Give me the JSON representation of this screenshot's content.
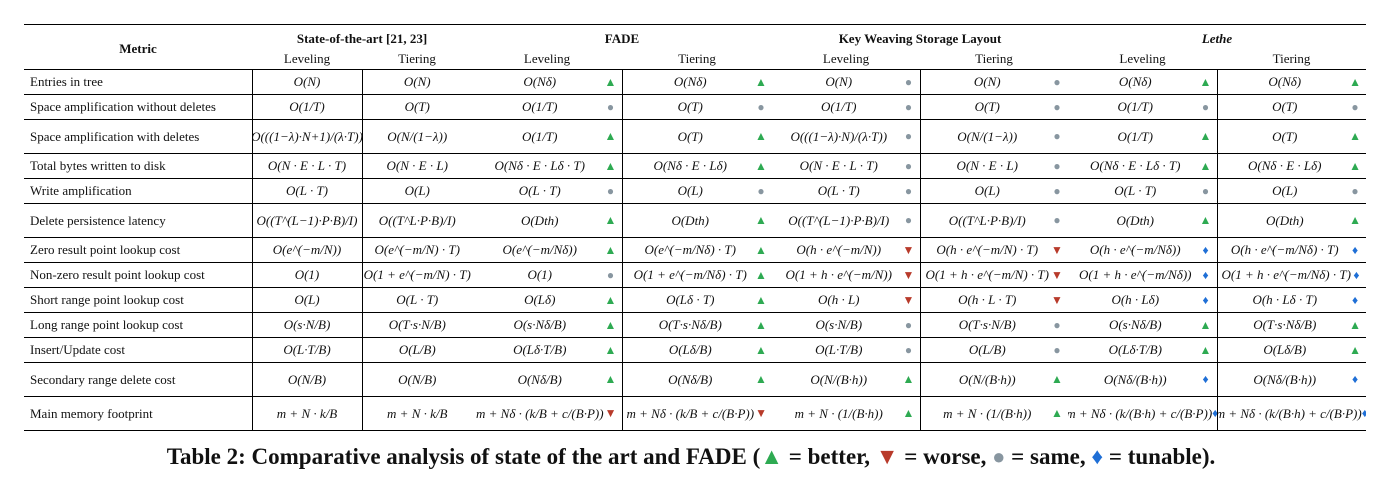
{
  "header": {
    "metric": "Metric",
    "groups": [
      "State-of-the-art [21, 23]",
      "FADE",
      "Key Weaving Storage Layout",
      "Lethe"
    ],
    "sub": [
      "Leveling",
      "Tiering",
      "Leveling",
      "Tiering",
      "Leveling",
      "Tiering",
      "Leveling",
      "Tiering"
    ]
  },
  "rows": [
    {
      "metric": "Entries in tree",
      "tall": false,
      "cells": [
        [
          "O(N)",
          ""
        ],
        [
          "O(N)",
          ""
        ],
        [
          "O(Nδ)",
          "up"
        ],
        [
          "O(Nδ)",
          "up"
        ],
        [
          "O(N)",
          "same"
        ],
        [
          "O(N)",
          "same"
        ],
        [
          "O(Nδ)",
          "up"
        ],
        [
          "O(Nδ)",
          "up"
        ]
      ]
    },
    {
      "metric": "Space amplification without deletes",
      "tall": false,
      "cells": [
        [
          "O(1/T)",
          ""
        ],
        [
          "O(T)",
          ""
        ],
        [
          "O(1/T)",
          "same"
        ],
        [
          "O(T)",
          "same"
        ],
        [
          "O(1/T)",
          "same"
        ],
        [
          "O(T)",
          "same"
        ],
        [
          "O(1/T)",
          "same"
        ],
        [
          "O(T)",
          "same"
        ]
      ]
    },
    {
      "metric": "Space amplification with deletes",
      "tall": true,
      "cells": [
        [
          "O(((1−λ)·N+1)/(λ·T))",
          ""
        ],
        [
          "O(N/(1−λ))",
          ""
        ],
        [
          "O(1/T)",
          "up"
        ],
        [
          "O(T)",
          "up"
        ],
        [
          "O(((1−λ)·N)/(λ·T))",
          "same"
        ],
        [
          "O(N/(1−λ))",
          "same"
        ],
        [
          "O(1/T)",
          "up"
        ],
        [
          "O(T)",
          "up"
        ]
      ]
    },
    {
      "metric": "Total bytes written to disk",
      "tall": false,
      "cells": [
        [
          "O(N · E · L · T)",
          ""
        ],
        [
          "O(N · E · L)",
          ""
        ],
        [
          "O(Nδ · E · Lδ · T)",
          "up"
        ],
        [
          "O(Nδ · E · Lδ)",
          "up"
        ],
        [
          "O(N · E · L · T)",
          "same"
        ],
        [
          "O(N · E · L)",
          "same"
        ],
        [
          "O(Nδ · E · Lδ · T)",
          "up"
        ],
        [
          "O(Nδ · E · Lδ)",
          "up"
        ]
      ]
    },
    {
      "metric": "Write amplification",
      "tall": false,
      "cells": [
        [
          "O(L · T)",
          ""
        ],
        [
          "O(L)",
          ""
        ],
        [
          "O(L · T)",
          "same"
        ],
        [
          "O(L)",
          "same"
        ],
        [
          "O(L · T)",
          "same"
        ],
        [
          "O(L)",
          "same"
        ],
        [
          "O(L · T)",
          "same"
        ],
        [
          "O(L)",
          "same"
        ]
      ]
    },
    {
      "metric": "Delete persistence latency",
      "tall": true,
      "cells": [
        [
          "O((T^(L−1)·P·B)/I)",
          ""
        ],
        [
          "O((T^L·P·B)/I)",
          ""
        ],
        [
          "O(Dth)",
          "up"
        ],
        [
          "O(Dth)",
          "up"
        ],
        [
          "O((T^(L−1)·P·B)/I)",
          "same"
        ],
        [
          "O((T^L·P·B)/I)",
          "same"
        ],
        [
          "O(Dth)",
          "up"
        ],
        [
          "O(Dth)",
          "up"
        ]
      ]
    },
    {
      "metric": "Zero result point lookup cost",
      "tall": false,
      "cells": [
        [
          "O(e^(−m/N))",
          ""
        ],
        [
          "O(e^(−m/N) · T)",
          ""
        ],
        [
          "O(e^(−m/Nδ))",
          "up"
        ],
        [
          "O(e^(−m/Nδ) · T)",
          "up"
        ],
        [
          "O(h · e^(−m/N))",
          "down"
        ],
        [
          "O(h · e^(−m/N) · T)",
          "down"
        ],
        [
          "O(h · e^(−m/Nδ))",
          "tune"
        ],
        [
          "O(h · e^(−m/Nδ) · T)",
          "tune"
        ]
      ]
    },
    {
      "metric": "Non-zero result point lookup cost",
      "tall": false,
      "cells": [
        [
          "O(1)",
          ""
        ],
        [
          "O(1 + e^(−m/N) · T)",
          ""
        ],
        [
          "O(1)",
          "same"
        ],
        [
          "O(1 + e^(−m/Nδ) · T)",
          "up"
        ],
        [
          "O(1 + h · e^(−m/N))",
          "down"
        ],
        [
          "O(1 + h · e^(−m/N) · T)",
          "down"
        ],
        [
          "O(1 + h · e^(−m/Nδ))",
          "tune"
        ],
        [
          "O(1 + h · e^(−m/Nδ) · T)",
          "tune"
        ]
      ]
    },
    {
      "metric": "Short range point lookup cost",
      "tall": false,
      "cells": [
        [
          "O(L)",
          ""
        ],
        [
          "O(L · T)",
          ""
        ],
        [
          "O(Lδ)",
          "up"
        ],
        [
          "O(Lδ · T)",
          "up"
        ],
        [
          "O(h · L)",
          "down"
        ],
        [
          "O(h · L · T)",
          "down"
        ],
        [
          "O(h · Lδ)",
          "tune"
        ],
        [
          "O(h · Lδ · T)",
          "tune"
        ]
      ]
    },
    {
      "metric": "Long range point lookup cost",
      "tall": false,
      "cells": [
        [
          "O(s·N/B)",
          ""
        ],
        [
          "O(T·s·N/B)",
          ""
        ],
        [
          "O(s·Nδ/B)",
          "up"
        ],
        [
          "O(T·s·Nδ/B)",
          "up"
        ],
        [
          "O(s·N/B)",
          "same"
        ],
        [
          "O(T·s·N/B)",
          "same"
        ],
        [
          "O(s·Nδ/B)",
          "up"
        ],
        [
          "O(T·s·Nδ/B)",
          "up"
        ]
      ]
    },
    {
      "metric": "Insert/Update cost",
      "tall": false,
      "cells": [
        [
          "O(L·T/B)",
          ""
        ],
        [
          "O(L/B)",
          ""
        ],
        [
          "O(Lδ·T/B)",
          "up"
        ],
        [
          "O(Lδ/B)",
          "up"
        ],
        [
          "O(L·T/B)",
          "same"
        ],
        [
          "O(L/B)",
          "same"
        ],
        [
          "O(Lδ·T/B)",
          "up"
        ],
        [
          "O(Lδ/B)",
          "up"
        ]
      ]
    },
    {
      "metric": "Secondary range delete cost",
      "tall": true,
      "cells": [
        [
          "O(N/B)",
          ""
        ],
        [
          "O(N/B)",
          ""
        ],
        [
          "O(Nδ/B)",
          "up"
        ],
        [
          "O(Nδ/B)",
          "up"
        ],
        [
          "O(N/(B·h))",
          "up"
        ],
        [
          "O(N/(B·h))",
          "up"
        ],
        [
          "O(Nδ/(B·h))",
          "tune"
        ],
        [
          "O(Nδ/(B·h))",
          "tune"
        ]
      ]
    },
    {
      "metric": "Main memory footprint",
      "tall": true,
      "cells": [
        [
          "m + N · k/B",
          ""
        ],
        [
          "m + N · k/B",
          ""
        ],
        [
          "m + Nδ · (k/B + c/(B·P))",
          "down"
        ],
        [
          "m + Nδ · (k/B + c/(B·P))",
          "down"
        ],
        [
          "m + N · (1/(B·h))",
          "up"
        ],
        [
          "m + N · (1/(B·h))",
          "up"
        ],
        [
          "m + Nδ · (k/(B·h) + c/(B·P))",
          "tune"
        ],
        [
          "m + Nδ · (k/(B·h) + c/(B·P))",
          "tune"
        ]
      ]
    }
  ],
  "markers": {
    "up": "▲",
    "down": "▼",
    "same": "●",
    "tune": "♦"
  },
  "caption": {
    "prefix": "Table 2: Comparative analysis of state of the art and FADE (",
    "better": " = better, ",
    "worse": " = worse, ",
    "same": " = same, ",
    "tunable": " = tunable)."
  },
  "colors": {
    "better": "#2eaa52",
    "worse": "#b83a2a",
    "same": "#8896a0",
    "tunable": "#1f6fd6"
  }
}
